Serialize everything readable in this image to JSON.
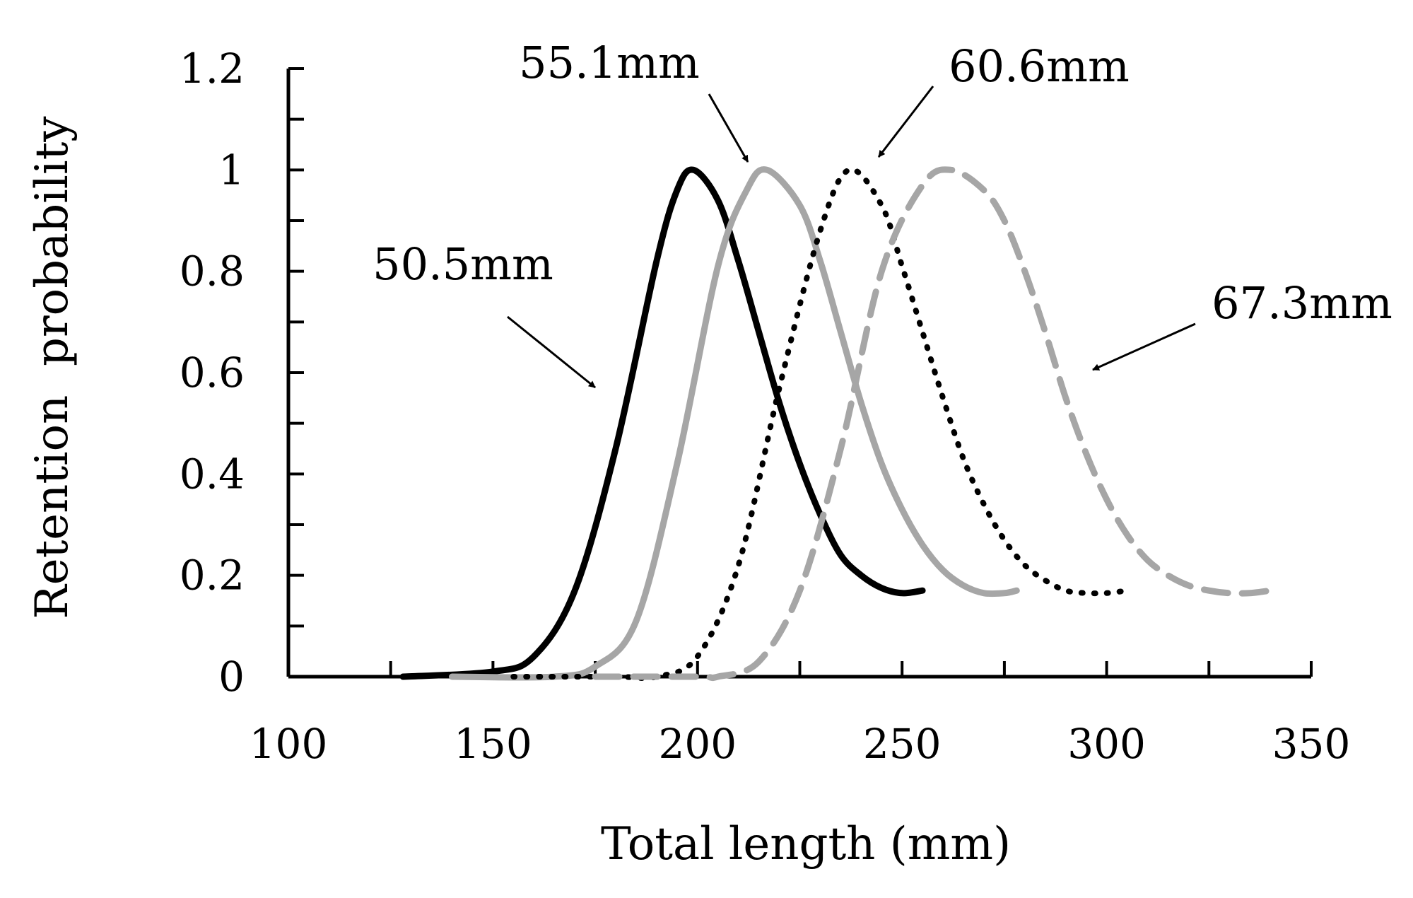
{
  "chart_data": {
    "type": "line",
    "title": "",
    "xlabel": "Total length (mm)",
    "ylabel": "Retention  probability",
    "xlim": [
      100,
      350
    ],
    "ylim": [
      0,
      1.2
    ],
    "x_ticks": [
      "100",
      "150",
      "200",
      "250",
      "300",
      "350"
    ],
    "x_tick_values": [
      100,
      150,
      200,
      250,
      300,
      350
    ],
    "y_ticks": [
      "0",
      "0.2",
      "0.4",
      "0.6",
      "0.8",
      "1",
      "1.2"
    ],
    "y_tick_values": [
      0,
      0.2,
      0.4,
      0.6,
      0.8,
      1.0,
      1.2
    ],
    "grid": false,
    "legend": "none",
    "series": [
      {
        "name": "50.5mm",
        "color": "#000000",
        "style": "solid",
        "x": [
          128,
          150,
          160,
          170,
          180,
          190,
          195,
          199,
          205,
          210,
          215,
          220,
          225,
          230,
          235,
          240,
          245,
          250,
          255
        ],
        "y": [
          0.0,
          0.01,
          0.04,
          0.17,
          0.45,
          0.82,
          0.96,
          1.0,
          0.94,
          0.82,
          0.68,
          0.54,
          0.42,
          0.32,
          0.24,
          0.2,
          0.175,
          0.165,
          0.17
        ]
      },
      {
        "name": "55.1mm",
        "color": "#a6a6a6",
        "style": "solid",
        "x": [
          140,
          165,
          175,
          185,
          195,
          205,
          212,
          217,
          225,
          230,
          235,
          240,
          245,
          250,
          255,
          260,
          265,
          270,
          275,
          278
        ],
        "y": [
          0.0,
          0.0,
          0.02,
          0.11,
          0.42,
          0.81,
          0.96,
          1.0,
          0.93,
          0.82,
          0.68,
          0.54,
          0.42,
          0.33,
          0.26,
          0.21,
          0.18,
          0.165,
          0.165,
          0.17
        ]
      },
      {
        "name": "60.6mm",
        "color": "#000000",
        "style": "dotted",
        "x": [
          155,
          180,
          190,
          200,
          210,
          220,
          230,
          237,
          245,
          250,
          255,
          260,
          265,
          270,
          275,
          280,
          285,
          290,
          295,
          300,
          305
        ],
        "y": [
          0.0,
          0.0,
          0.0,
          0.04,
          0.22,
          0.57,
          0.88,
          1.0,
          0.93,
          0.81,
          0.68,
          0.55,
          0.43,
          0.34,
          0.27,
          0.22,
          0.19,
          0.17,
          0.165,
          0.165,
          0.17
        ]
      },
      {
        "name": "67.3mm",
        "color": "#a6a6a6",
        "style": "dashed",
        "x": [
          175,
          200,
          205,
          215,
          225,
          235,
          245,
          255,
          262,
          270,
          275,
          280,
          285,
          290,
          295,
          300,
          305,
          310,
          315,
          320,
          325,
          330,
          335,
          340
        ],
        "y": [
          0.0,
          0.0,
          0.0,
          0.03,
          0.17,
          0.45,
          0.8,
          0.97,
          1.0,
          0.96,
          0.9,
          0.8,
          0.68,
          0.55,
          0.44,
          0.35,
          0.28,
          0.23,
          0.2,
          0.18,
          0.17,
          0.165,
          0.165,
          0.17
        ]
      }
    ],
    "annotations": [
      {
        "text": "50.5mm",
        "series": "50.5mm"
      },
      {
        "text": "55.1mm",
        "series": "55.1mm"
      },
      {
        "text": "60.6mm",
        "series": "60.6mm"
      },
      {
        "text": "67.3mm",
        "series": "67.3mm"
      }
    ]
  }
}
